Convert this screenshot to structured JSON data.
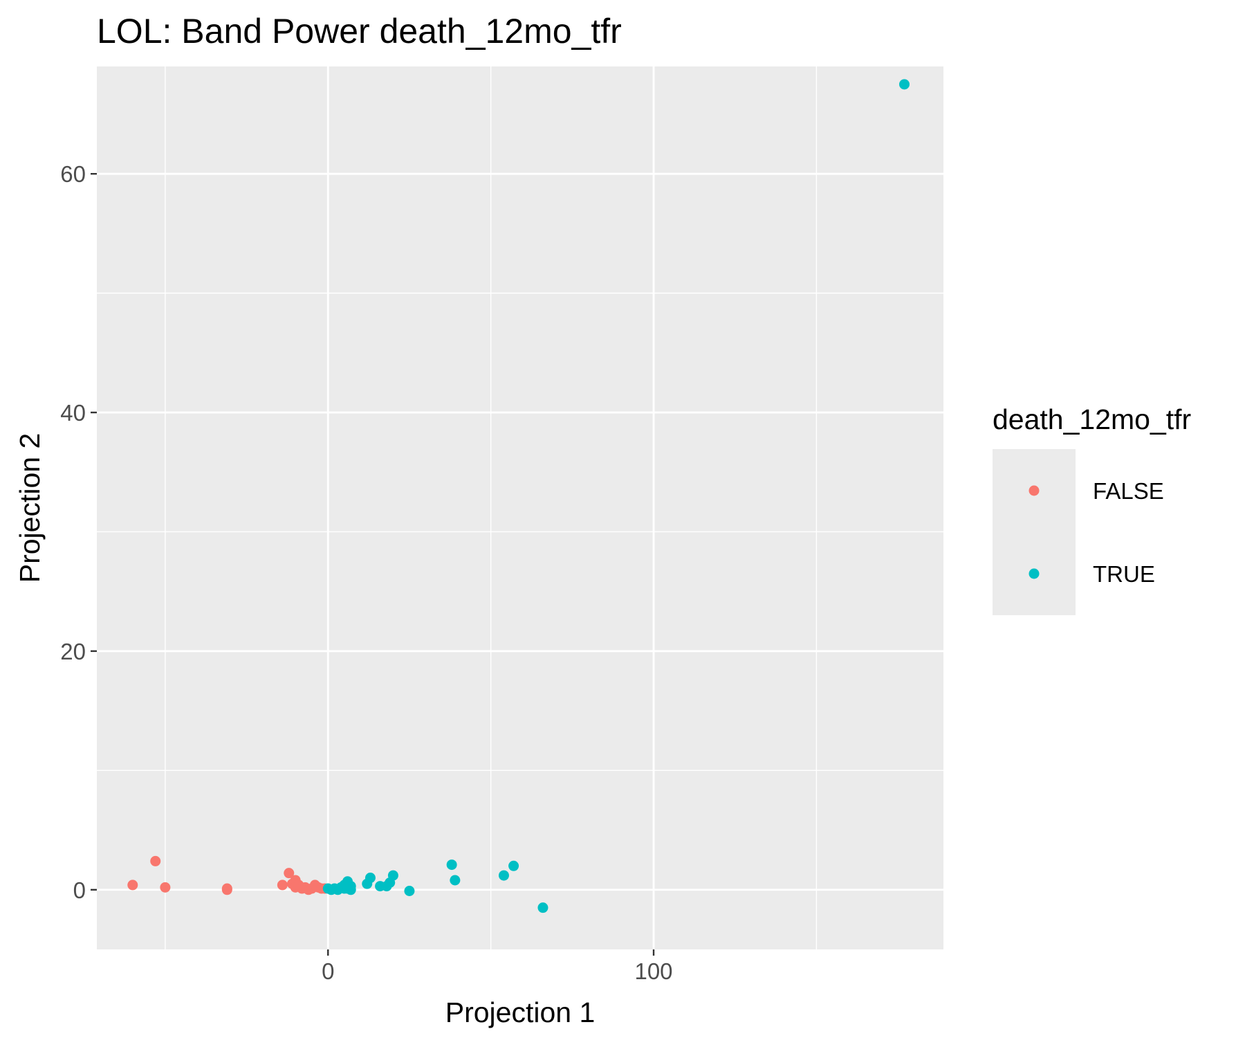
{
  "chart_data": {
    "type": "scatter",
    "title": "LOL: Band Power death_12mo_tfr",
    "xlabel": "Projection 1",
    "ylabel": "Projection 2",
    "xlim": [
      -71,
      189
    ],
    "ylim": [
      -5,
      69
    ],
    "xticks": [
      0,
      100
    ],
    "xticks_minor": [
      -50,
      50,
      150
    ],
    "yticks": [
      0,
      20,
      40,
      60
    ],
    "yticks_minor": [
      10,
      30,
      50
    ],
    "tick_labels_x": [
      "0",
      "100"
    ],
    "tick_labels_y": [
      "0",
      "20",
      "40",
      "60"
    ],
    "grid": true,
    "legend": {
      "title": "death_12mo_tfr",
      "placement": "right"
    },
    "colors": {
      "panel": "#EBEBEB",
      "grid": "#FFFFFF",
      "axis_text": "#4D4D4D",
      "tick": "#333333"
    },
    "series": [
      {
        "name": "FALSE",
        "color": "#F8766D",
        "points": [
          [
            -60,
            0.4
          ],
          [
            -53,
            2.4
          ],
          [
            -50,
            0.2
          ],
          [
            -31,
            0.1
          ],
          [
            -31,
            0.0
          ],
          [
            -14,
            0.4
          ],
          [
            -12,
            1.4
          ],
          [
            -11,
            0.5
          ],
          [
            -10,
            0.8
          ],
          [
            -10,
            0.2
          ],
          [
            -9,
            0.4
          ],
          [
            -8,
            0.1
          ],
          [
            -7,
            0.2
          ],
          [
            -6,
            0.0
          ],
          [
            -5,
            0.1
          ],
          [
            -4,
            0.4
          ],
          [
            -3,
            0.2
          ],
          [
            -2,
            0.1
          ],
          [
            -1,
            0.1
          ]
        ]
      },
      {
        "name": "TRUE",
        "color": "#00BFC4",
        "points": [
          [
            0,
            0.1
          ],
          [
            1,
            0.0
          ],
          [
            2,
            0.1
          ],
          [
            3,
            0.0
          ],
          [
            4,
            0.2
          ],
          [
            5,
            0.1
          ],
          [
            5,
            0.4
          ],
          [
            6,
            0.7
          ],
          [
            6,
            0.1
          ],
          [
            7,
            0.3
          ],
          [
            7,
            0.0
          ],
          [
            12,
            0.5
          ],
          [
            13,
            1.0
          ],
          [
            16,
            0.3
          ],
          [
            18,
            0.3
          ],
          [
            19,
            0.6
          ],
          [
            20,
            1.2
          ],
          [
            25,
            -0.1
          ],
          [
            38,
            2.1
          ],
          [
            39,
            0.8
          ],
          [
            54,
            1.2
          ],
          [
            57,
            2.0
          ],
          [
            66,
            -1.5
          ],
          [
            177,
            67.5
          ]
        ]
      }
    ]
  }
}
